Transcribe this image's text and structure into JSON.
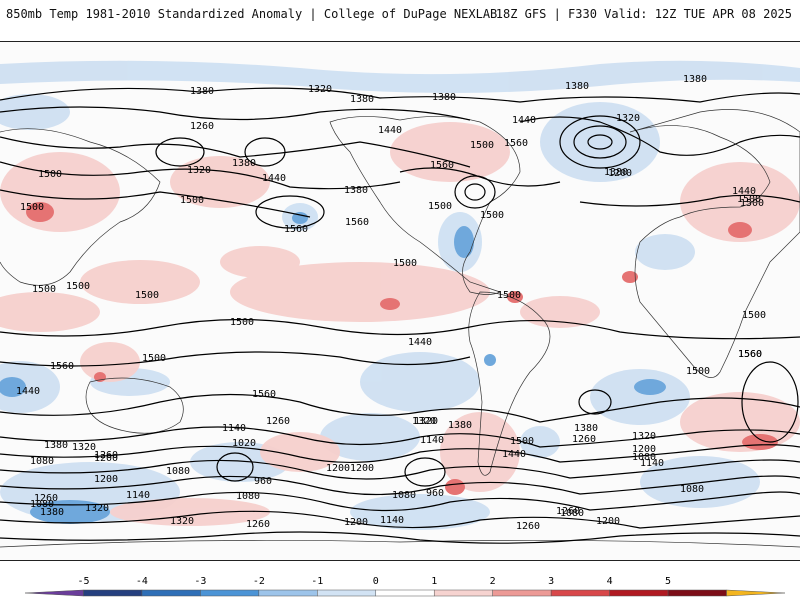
{
  "header": {
    "left": "850mb Temp 1981-2010 Standardized Anomaly | College of DuPage NEXLAB",
    "right": "18Z GFS | F330 Valid: 12Z TUE APR 08 2025"
  },
  "legend": {
    "ticks": [
      "-5",
      "-4",
      "-3",
      "-2",
      "-1",
      "0",
      "1",
      "2",
      "3",
      "4",
      "5"
    ],
    "colors": [
      "#6a3d9a",
      "#253f7f",
      "#2f6fb7",
      "#4c94d6",
      "#9dc4ea",
      "#d2e3f4",
      "#ffffff",
      "#f6d3d0",
      "#ec9a96",
      "#d8484a",
      "#b01a22",
      "#7c0d18",
      "#f3b51f"
    ]
  },
  "contour_labels": [
    {
      "text": "1380"
    },
    {
      "text": "1320"
    },
    {
      "text": "1380"
    },
    {
      "text": "1380"
    },
    {
      "text": "1380"
    },
    {
      "text": "1380"
    },
    {
      "text": "1320"
    },
    {
      "text": "1260"
    },
    {
      "text": "1440"
    },
    {
      "text": "1440"
    },
    {
      "text": "1380"
    },
    {
      "text": "1320"
    },
    {
      "text": "1440"
    },
    {
      "text": "1500"
    },
    {
      "text": "1560"
    },
    {
      "text": "1500"
    },
    {
      "text": "1560"
    },
    {
      "text": "1200"
    },
    {
      "text": "1380"
    },
    {
      "text": "1500"
    },
    {
      "text": "1380"
    },
    {
      "text": "1560"
    },
    {
      "text": "1500"
    },
    {
      "text": "1500"
    },
    {
      "text": "1560"
    },
    {
      "text": "1500"
    },
    {
      "text": "1440"
    },
    {
      "text": "1500"
    },
    {
      "text": "1500"
    },
    {
      "text": "1500"
    },
    {
      "text": "1500"
    },
    {
      "text": "1500"
    },
    {
      "text": "1500"
    },
    {
      "text": "1500"
    },
    {
      "text": "1500"
    },
    {
      "text": "1500"
    },
    {
      "text": "1560"
    },
    {
      "text": "1560"
    },
    {
      "text": "1560"
    },
    {
      "text": "1560"
    },
    {
      "text": "1500"
    },
    {
      "text": "1440"
    },
    {
      "text": "1500"
    },
    {
      "text": "1440"
    },
    {
      "text": "1320"
    },
    {
      "text": "1260"
    },
    {
      "text": "1140"
    },
    {
      "text": "1020"
    },
    {
      "text": "1380"
    },
    {
      "text": "1320"
    },
    {
      "text": "1140"
    },
    {
      "text": "1380"
    },
    {
      "text": "1320"
    },
    {
      "text": "1260"
    },
    {
      "text": "1200"
    },
    {
      "text": "1080"
    },
    {
      "text": "1080"
    },
    {
      "text": "960"
    },
    {
      "text": "1080"
    },
    {
      "text": "1200"
    },
    {
      "text": "1140"
    },
    {
      "text": "1080"
    },
    {
      "text": "960"
    },
    {
      "text": "1500"
    },
    {
      "text": "1440"
    },
    {
      "text": "1260"
    },
    {
      "text": "1380"
    },
    {
      "text": "1320"
    },
    {
      "text": "1200"
    },
    {
      "text": "1080"
    },
    {
      "text": "1140"
    },
    {
      "text": "1200"
    },
    {
      "text": "1080"
    },
    {
      "text": "1200"
    },
    {
      "text": "1260"
    },
    {
      "text": "1320"
    },
    {
      "text": "1260"
    },
    {
      "text": "1200"
    },
    {
      "text": "1140"
    },
    {
      "text": "1260"
    },
    {
      "text": "1380"
    },
    {
      "text": "1320"
    },
    {
      "text": "1260"
    },
    {
      "text": "1200"
    },
    {
      "text": "1080"
    },
    {
      "text": "1080"
    }
  ]
}
